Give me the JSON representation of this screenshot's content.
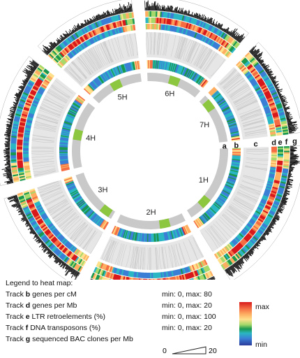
{
  "chromosomes": [
    {
      "name": "1H",
      "fill": "#c9c9c9"
    },
    {
      "name": "2H",
      "fill": "#c9c9c9"
    },
    {
      "name": "3H",
      "fill": "#c9c9c9"
    },
    {
      "name": "4H",
      "fill": "#c9c9c9"
    },
    {
      "name": "5H",
      "fill": "#c9c9c9"
    },
    {
      "name": "6H",
      "fill": "#c9c9c9"
    },
    {
      "name": "7H",
      "fill": "#c9c9c9"
    }
  ],
  "centromere_color": "#8dc63f",
  "ribbon_color": "#c8c8c8",
  "track_letters": [
    "a",
    "b",
    "c",
    "d",
    "e",
    "f",
    "g"
  ],
  "legend": {
    "title": "Legend to heat map:",
    "rows": [
      {
        "prefix": "Track ",
        "letter": "b",
        "text": " genes per cM",
        "range": "min: 0, max: 80"
      },
      {
        "prefix": "Track ",
        "letter": "d",
        "text": " genes per Mb",
        "range": "min: 0, max: 20"
      },
      {
        "prefix": "Track ",
        "letter": "e",
        "text": " LTR retroelements (%)",
        "range": "min: 0, max: 100"
      },
      {
        "prefix": "Track ",
        "letter": "f",
        "text": " DNA transposons (%)",
        "range": "min: 0, max: 20"
      },
      {
        "prefix": "Track ",
        "letter": "g",
        "text": " sequenced BAC clones per Mb",
        "range_min": "0",
        "range_max": "20"
      }
    ],
    "scale_max": "max",
    "scale_min": "min"
  }
}
